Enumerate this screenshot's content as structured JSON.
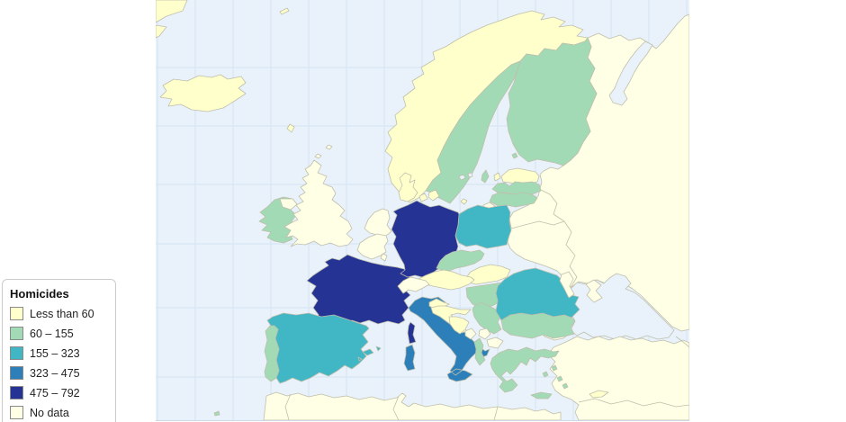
{
  "legend": {
    "title": "Homicides",
    "items": [
      {
        "key": "c1",
        "label": "Less than 60",
        "color": "#FFFFCC"
      },
      {
        "key": "c2",
        "label": "60 – 155",
        "color": "#A1DAB4"
      },
      {
        "key": "c3",
        "label": "155 – 323",
        "color": "#41B6C4"
      },
      {
        "key": "c4",
        "label": "323 – 475",
        "color": "#2C7FB8"
      },
      {
        "key": "c5",
        "label": "475 – 792",
        "color": "#253494"
      },
      {
        "key": "nodata",
        "label": "No data",
        "color": "#FFFFE5"
      }
    ]
  },
  "map": {
    "sea_color": "#E9F2FA",
    "graticule_color": "#D4E4F4",
    "border_color": "#BFBFAD",
    "regions": {
      "iceland": "c1",
      "greenland": "c1",
      "jan-mayen": "c1",
      "faroe-islands": "c1",
      "norway": "c1",
      "sweden": "c2",
      "finland": "c2",
      "estonia": "c1",
      "latvia": "c2",
      "lithuania": "c2",
      "kaliningrad": "nodata",
      "russia": "nodata",
      "belarus": "nodata",
      "ukraine": "nodata",
      "moldova": "nodata",
      "poland": "c3",
      "germany": "c5",
      "denmark": "c1",
      "netherlands": "nodata",
      "belgium": "nodata",
      "luxembourg": "nodata",
      "united-kingdom": "nodata",
      "ireland": "c2",
      "france": "c5",
      "switzerland": "nodata",
      "austria": "c1",
      "czech-republic": "c2",
      "slovakia": "c1",
      "hungary": "c2",
      "slovenia": "c1",
      "croatia": "c1",
      "bosnia-herzegovina": "c1",
      "serbia": "c2",
      "montenegro": "nodata",
      "kosovo": "nodata",
      "macedonia": "nodata",
      "albania": "c2",
      "greece": "c2",
      "bulgaria": "c2",
      "romania": "c3",
      "spain": "c3",
      "portugal": "c2",
      "italy": "c4",
      "turkey": "nodata",
      "cyprus": "c1",
      "north-africa": "nodata"
    }
  }
}
